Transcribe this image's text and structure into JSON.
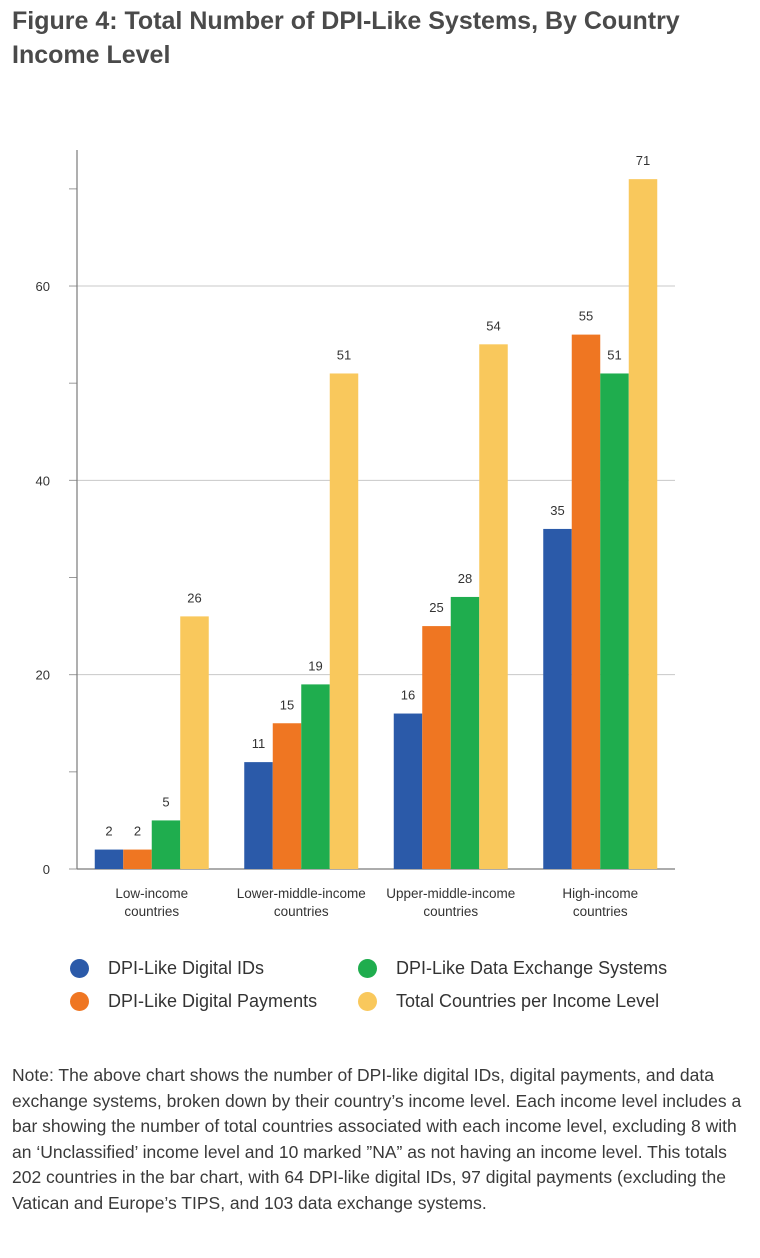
{
  "title": "Figure 4: Total Number of DPI-Like Systems, By Country Income Level",
  "chart_data": {
    "type": "bar",
    "title": "Figure 4: Total Number of DPI-Like Systems, By Country Income Level",
    "xlabel": "",
    "ylabel": "",
    "ylim": [
      0,
      74
    ],
    "yticks": [
      0,
      20,
      40,
      60
    ],
    "grid": true,
    "legend_position": "bottom",
    "categories": [
      [
        "Low-income",
        "countries"
      ],
      [
        "Lower-middle-income",
        "countries"
      ],
      [
        "Upper-middle-income",
        "countries"
      ],
      [
        "High-income",
        "countries"
      ]
    ],
    "series": [
      {
        "name": "DPI-Like Digital IDs",
        "color": "#2b5aa9",
        "values": [
          2,
          11,
          16,
          35
        ]
      },
      {
        "name": "DPI-Like Digital Payments",
        "color": "#ef7622",
        "values": [
          2,
          15,
          25,
          55
        ]
      },
      {
        "name": "DPI-Like Data Exchange Systems",
        "color": "#1fad4e",
        "values": [
          5,
          19,
          28,
          51
        ]
      },
      {
        "name": "Total Countries per Income Level",
        "color": "#f9c85c",
        "values": [
          26,
          51,
          54,
          71
        ]
      }
    ]
  },
  "legend": {
    "items": [
      {
        "label": "DPI-Like Digital IDs",
        "color": "#2b5aa9"
      },
      {
        "label": "DPI-Like Data Exchange Systems",
        "color": "#1fad4e"
      },
      {
        "label": "DPI-Like Digital Payments",
        "color": "#ef7622"
      },
      {
        "label": "Total Countries per Income Level",
        "color": "#f9c85c"
      }
    ]
  },
  "note": "Note: The above chart shows the number of DPI-like digital IDs, digital payments, and data exchange systems, broken down by their country’s income level. Each income level includes a bar showing the number of total countries associated with each income level, excluding 8 with an ‘Unclassified’ income level and 10 marked ”NA” as not having an income level. This totals 202 countries in the bar chart, with 64 DPI-like digital IDs, 97 digital payments (excluding the Vatican and Europe’s TIPS, and 103 data exchange systems."
}
